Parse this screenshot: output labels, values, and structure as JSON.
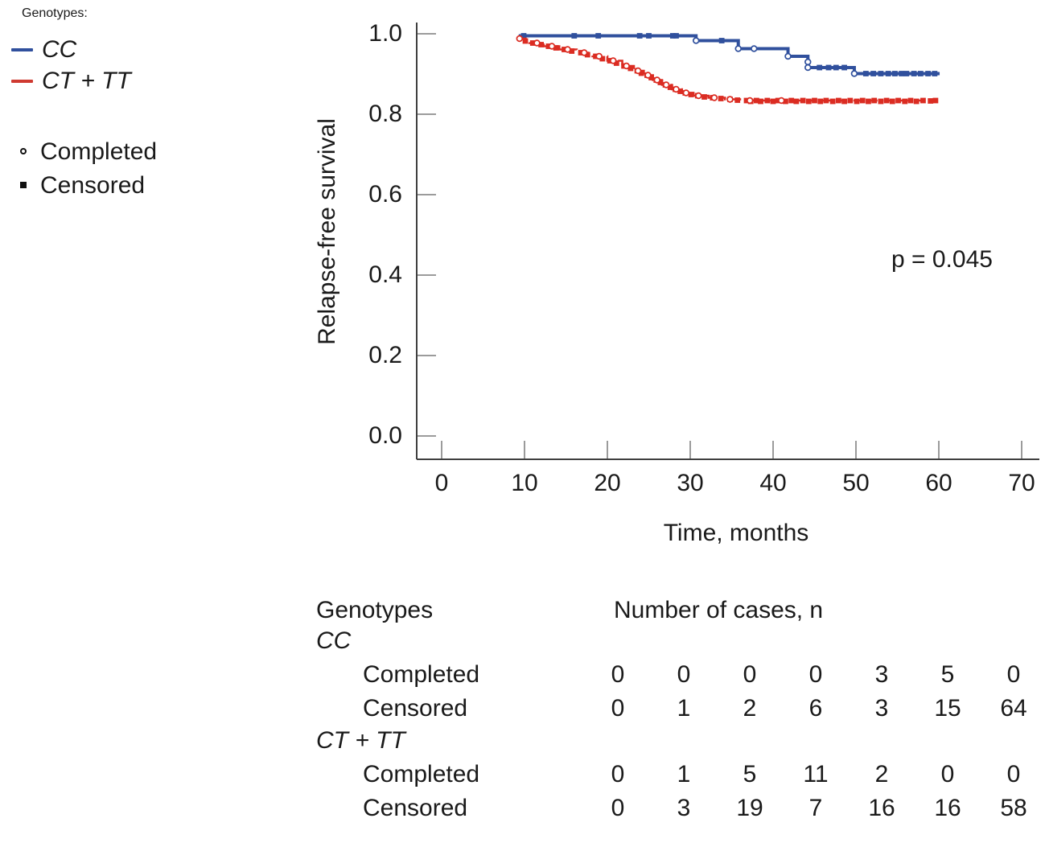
{
  "legend": {
    "title": "Genotypes:",
    "items": [
      {
        "label": "CC",
        "color": "#30509d"
      },
      {
        "label": "CT + TT",
        "color": "#cf3a31"
      }
    ],
    "marker_items": [
      {
        "label": "Completed",
        "marker": "open-circle"
      },
      {
        "label": "Censored",
        "marker": "filled-square"
      }
    ]
  },
  "annotation": {
    "p_value": "p = 0.045"
  },
  "chart_data": {
    "type": "line",
    "subtype": "kaplan-meier-step",
    "xlabel": "Time, months",
    "ylabel": "Relapse-free survival",
    "xlim": [
      0,
      70
    ],
    "ylim": [
      0.0,
      1.0
    ],
    "grid": false,
    "legend_position": "top-left-outside",
    "xticks": [
      {
        "label": "0",
        "value": 0
      },
      {
        "label": "10",
        "value": 10
      },
      {
        "label": "20",
        "value": 20
      },
      {
        "label": "30",
        "value": 30
      },
      {
        "label": "40",
        "value": 40
      },
      {
        "label": "50",
        "value": 50
      },
      {
        "label": "60",
        "value": 60
      },
      {
        "label": "70",
        "value": 70
      }
    ],
    "yticks": [
      {
        "label": "0.0",
        "value": 0.0
      },
      {
        "label": "0.2",
        "value": 0.2
      },
      {
        "label": "0.4",
        "value": 0.4
      },
      {
        "label": "0.6",
        "value": 0.6
      },
      {
        "label": "0.8",
        "value": 0.8
      },
      {
        "label": "1.0",
        "value": 1.0
      }
    ],
    "series": [
      {
        "name": "CC",
        "color": "#30509d",
        "line_style": "solid",
        "line_width": 4,
        "steps": [
          [
            9.3,
            0.995
          ],
          [
            30.7,
            0.983
          ],
          [
            35.8,
            0.963
          ],
          [
            41.8,
            0.944
          ],
          [
            44.2,
            0.916
          ],
          [
            49.8,
            0.901
          ]
        ],
        "end_month": 60.1,
        "censored_squares": [
          [
            9.9,
            0.995
          ],
          [
            16.0,
            0.995
          ],
          [
            18.9,
            0.995
          ],
          [
            23.9,
            0.995
          ],
          [
            25.0,
            0.995
          ],
          [
            27.9,
            0.995
          ],
          [
            28.3,
            0.995
          ],
          [
            33.8,
            0.983
          ],
          [
            45.6,
            0.916
          ],
          [
            46.7,
            0.916
          ],
          [
            47.6,
            0.916
          ],
          [
            48.6,
            0.916
          ],
          [
            51.2,
            0.901
          ],
          [
            52.1,
            0.901
          ],
          [
            53.0,
            0.901
          ],
          [
            53.9,
            0.901
          ],
          [
            54.7,
            0.901
          ],
          [
            55.5,
            0.901
          ],
          [
            56.1,
            0.901
          ],
          [
            57.0,
            0.901
          ],
          [
            57.8,
            0.901
          ],
          [
            58.7,
            0.901
          ],
          [
            59.5,
            0.901
          ]
        ],
        "completed_circles": [
          [
            30.7,
            0.983
          ],
          [
            35.8,
            0.963
          ],
          [
            37.7,
            0.963
          ],
          [
            41.8,
            0.944
          ],
          [
            44.2,
            0.93
          ],
          [
            44.2,
            0.916
          ],
          [
            49.8,
            0.901
          ]
        ]
      },
      {
        "name": "CT + TT",
        "color": "#db2c22",
        "line_style": "dashed",
        "line_width": 2.6,
        "steps": [
          [
            9.2,
            0.988
          ],
          [
            10.6,
            0.977
          ],
          [
            12.3,
            0.969
          ],
          [
            14.2,
            0.961
          ],
          [
            16.3,
            0.953
          ],
          [
            18.2,
            0.944
          ],
          [
            20.0,
            0.933
          ],
          [
            21.8,
            0.92
          ],
          [
            23.2,
            0.908
          ],
          [
            24.4,
            0.897
          ],
          [
            25.5,
            0.885
          ],
          [
            26.6,
            0.873
          ],
          [
            27.8,
            0.862
          ],
          [
            29.0,
            0.853
          ],
          [
            30.4,
            0.846
          ],
          [
            32.2,
            0.841
          ],
          [
            34.2,
            0.837
          ],
          [
            36.2,
            0.834
          ]
        ],
        "end_month": 59.6,
        "censored_squares": [
          [
            10.1,
            0.982
          ],
          [
            11.0,
            0.977
          ],
          [
            12.0,
            0.973
          ],
          [
            12.9,
            0.969
          ],
          [
            13.8,
            0.965
          ],
          [
            14.8,
            0.961
          ],
          [
            15.7,
            0.957
          ],
          [
            16.8,
            0.953
          ],
          [
            17.6,
            0.948
          ],
          [
            18.6,
            0.944
          ],
          [
            19.4,
            0.938
          ],
          [
            20.3,
            0.933
          ],
          [
            21.1,
            0.927
          ],
          [
            22.0,
            0.92
          ],
          [
            22.8,
            0.914
          ],
          [
            23.6,
            0.908
          ],
          [
            24.1,
            0.902
          ],
          [
            24.8,
            0.897
          ],
          [
            25.3,
            0.891
          ],
          [
            25.9,
            0.885
          ],
          [
            26.4,
            0.879
          ],
          [
            27.0,
            0.873
          ],
          [
            27.6,
            0.867
          ],
          [
            28.2,
            0.862
          ],
          [
            28.8,
            0.857
          ],
          [
            29.4,
            0.853
          ],
          [
            30.1,
            0.849
          ],
          [
            30.9,
            0.846
          ],
          [
            31.7,
            0.843
          ],
          [
            32.7,
            0.841
          ],
          [
            33.7,
            0.839
          ],
          [
            34.8,
            0.837
          ],
          [
            35.7,
            0.835
          ],
          [
            36.8,
            0.834
          ],
          [
            37.3,
            0.832
          ],
          [
            38.0,
            0.834
          ],
          [
            38.5,
            0.832
          ],
          [
            39.3,
            0.834
          ],
          [
            40.0,
            0.832
          ],
          [
            40.6,
            0.834
          ],
          [
            41.5,
            0.832
          ],
          [
            42.2,
            0.834
          ],
          [
            42.8,
            0.832
          ],
          [
            43.6,
            0.834
          ],
          [
            44.3,
            0.832
          ],
          [
            45.0,
            0.834
          ],
          [
            45.7,
            0.832
          ],
          [
            46.4,
            0.834
          ],
          [
            47.2,
            0.832
          ],
          [
            47.9,
            0.834
          ],
          [
            48.6,
            0.832
          ],
          [
            49.3,
            0.834
          ],
          [
            50.1,
            0.832
          ],
          [
            50.8,
            0.834
          ],
          [
            51.5,
            0.832
          ],
          [
            52.2,
            0.834
          ],
          [
            53.0,
            0.832
          ],
          [
            53.7,
            0.834
          ],
          [
            54.4,
            0.832
          ],
          [
            55.1,
            0.834
          ],
          [
            55.9,
            0.832
          ],
          [
            56.6,
            0.834
          ],
          [
            57.3,
            0.832
          ],
          [
            58.1,
            0.834
          ],
          [
            59.0,
            0.833
          ],
          [
            59.6,
            0.834
          ]
        ],
        "completed_circles": [
          [
            9.4,
            0.988
          ],
          [
            11.5,
            0.977
          ],
          [
            13.3,
            0.969
          ],
          [
            15.2,
            0.961
          ],
          [
            17.2,
            0.953
          ],
          [
            19.0,
            0.944
          ],
          [
            20.7,
            0.933
          ],
          [
            22.3,
            0.92
          ],
          [
            23.7,
            0.908
          ],
          [
            24.9,
            0.897
          ],
          [
            26.0,
            0.885
          ],
          [
            27.1,
            0.873
          ],
          [
            28.3,
            0.862
          ],
          [
            29.5,
            0.853
          ],
          [
            31.0,
            0.846
          ],
          [
            32.9,
            0.841
          ],
          [
            34.8,
            0.837
          ],
          [
            37.2,
            0.834
          ],
          [
            41.0,
            0.834
          ]
        ]
      }
    ],
    "annotations": [
      {
        "text": "p = 0.045",
        "x_month": 54.3,
        "y_survival": 0.43
      }
    ]
  },
  "table": {
    "col1_header": "Genotypes",
    "col2_header": "Number of cases, n",
    "groups": [
      {
        "name": "CC",
        "rows": [
          {
            "label": "Completed",
            "values": [
              "0",
              "0",
              "0",
              "0",
              "3",
              "5",
              "0"
            ]
          },
          {
            "label": "Censored",
            "values": [
              "0",
              "1",
              "2",
              "6",
              "3",
              "15",
              "64"
            ]
          }
        ]
      },
      {
        "name": "CT + TT",
        "rows": [
          {
            "label": "Completed",
            "values": [
              "0",
              "1",
              "5",
              "11",
              "2",
              "0",
              "0"
            ]
          },
          {
            "label": "Censored",
            "values": [
              "0",
              "3",
              "19",
              "7",
              "16",
              "16",
              "58"
            ]
          }
        ]
      }
    ]
  }
}
